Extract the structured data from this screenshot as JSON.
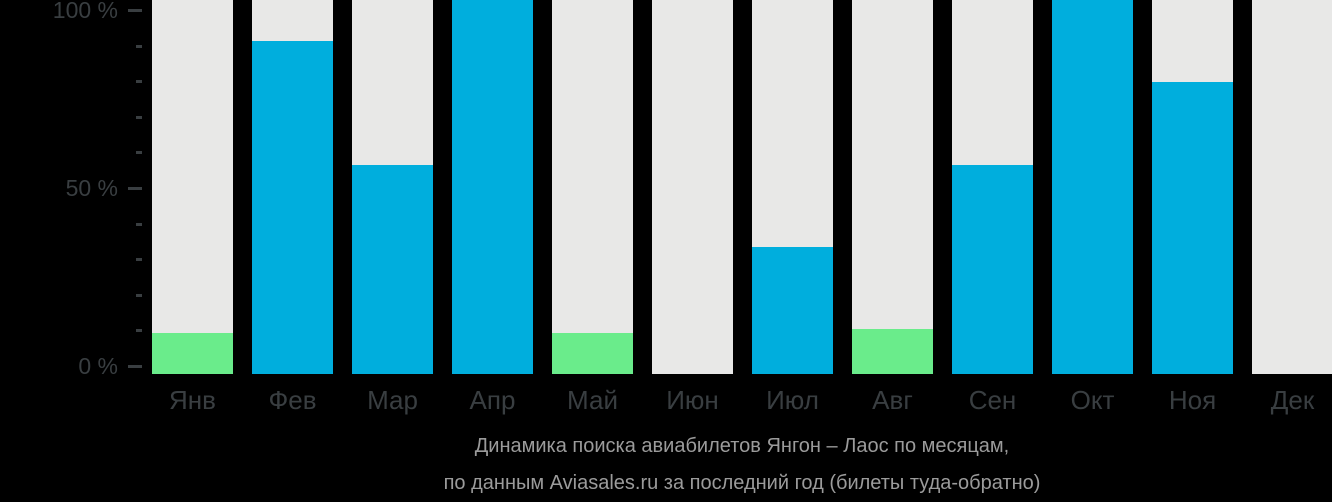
{
  "chart_data": {
    "type": "bar",
    "title": "Динамика поиска авиабилетов Янгон – Лаос по месяцам, по данным Aviasales.ru за последний год (билеты туда-обратно)",
    "title_lines": [
      "Динамика поиска авиабилетов Янгон – Лаос по месяцам,",
      "по данным Aviasales.ru за последний год (билеты туда-обратно)"
    ],
    "categories": [
      "Янв",
      "Фев",
      "Мар",
      "Апр",
      "Май",
      "Июн",
      "Июл",
      "Авг",
      "Сен",
      "Окт",
      "Ноя",
      "Дек"
    ],
    "values": [
      11,
      89,
      56,
      100,
      11,
      0,
      34,
      12,
      56,
      100,
      78,
      0
    ],
    "bar_colors": [
      "green",
      "blue",
      "blue",
      "blue",
      "green",
      "none",
      "blue",
      "green",
      "blue",
      "blue",
      "blue",
      "none"
    ],
    "xlabel": "",
    "ylabel": "",
    "ylim": [
      0,
      100
    ],
    "grid": false,
    "legend": false,
    "yticks": [
      {
        "value": 100,
        "label": "100 %"
      },
      {
        "value": 50,
        "label": "50 %"
      },
      {
        "value": 0,
        "label": "0 %"
      }
    ],
    "minor_tick_step": 10,
    "colors": {
      "blue": "#00aedd",
      "green": "#6aec8b",
      "track": "#e8e8e7",
      "axis_text": "#393e41",
      "caption_text": "#9b9b9b",
      "background": "#000000"
    }
  }
}
